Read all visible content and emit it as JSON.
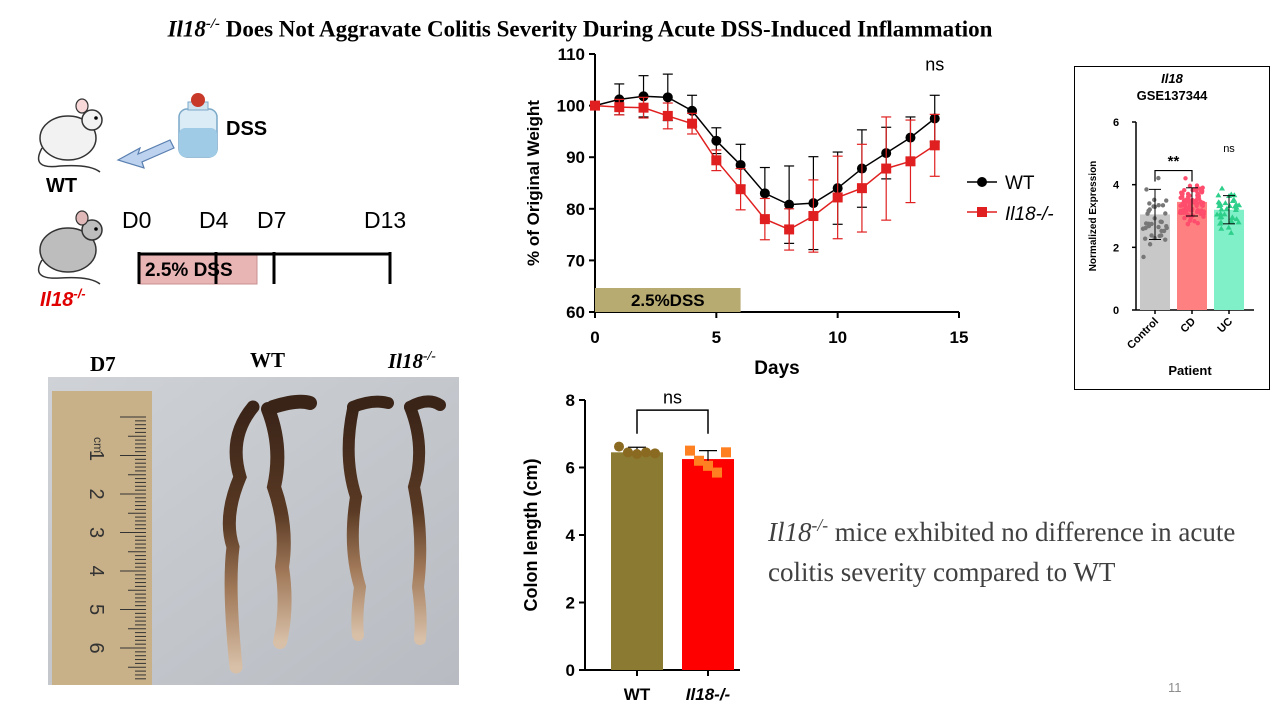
{
  "slide": {
    "title_gene": "Il18",
    "title_sup": "-/-",
    "title_rest": " Does Not Aggravate Colitis Severity During Acute DSS-Induced Inflammation",
    "slide_number": "11",
    "conclusion_gene": "Il18",
    "conclusion_sup": "-/-",
    "conclusion_text": " mice exhibited no difference in acute colitis severity compared to WT"
  },
  "schematic": {
    "dss_label": "DSS",
    "wt_label": "WT",
    "ko_gene": "Il18",
    "ko_sup": "-/-",
    "timeline_days": [
      "D0",
      "D4",
      "D7",
      "D13"
    ],
    "dss_bar_label": "2.5% DSS"
  },
  "photo": {
    "day_label": "D7",
    "wt_label": "WT",
    "ko_gene": "Il18",
    "ko_sup": "-/-",
    "ruler_ticks": [
      "1",
      "2",
      "3",
      "4",
      "5",
      "6"
    ],
    "ruler_unit": "cm"
  },
  "colors": {
    "wt": "#000000",
    "ko": "#e02020",
    "dss_bar": "#b8ab72",
    "wt_bar": "#8a7a32",
    "ko_bar": "#ff0000",
    "control": "#c8c8c8",
    "cd": "#ff8080",
    "uc": "#80f0c8"
  },
  "chart_data": [
    {
      "type": "line",
      "title": "",
      "xlabel": "Days",
      "ylabel": "% of Original Weight",
      "xlim": [
        0,
        15
      ],
      "ylim": [
        60,
        110
      ],
      "xticks": [
        0,
        5,
        10,
        15
      ],
      "yticks": [
        60,
        70,
        80,
        90,
        100,
        110
      ],
      "annotation": "ns",
      "dss_bar_label": "2.5%DSS",
      "dss_bar_range": [
        0,
        6
      ],
      "legend": "right",
      "x": [
        0,
        1,
        2,
        3,
        4,
        5,
        6,
        7,
        8,
        9,
        10,
        11,
        12,
        13,
        14
      ],
      "series": [
        {
          "name": "WT",
          "values": [
            100,
            101.2,
            101.8,
            101.6,
            99,
            93.2,
            88.5,
            83,
            80.8,
            81.1,
            84,
            87.8,
            90.8,
            93.8,
            97.5
          ],
          "errors": [
            0.5,
            3,
            4,
            4.5,
            3,
            2.5,
            4,
            5,
            7.5,
            9,
            7,
            7.5,
            5,
            4,
            4.5
          ]
        },
        {
          "name": "Il18-/-",
          "values": [
            100,
            99.7,
            99.6,
            98,
            96.5,
            89.4,
            83.8,
            78,
            76,
            78.6,
            82.2,
            84,
            87.8,
            89.2,
            92.3
          ],
          "errors": [
            0.5,
            1.5,
            2,
            2.5,
            2,
            2,
            4,
            4,
            4,
            7,
            8,
            8.5,
            10,
            8,
            6
          ]
        }
      ]
    },
    {
      "type": "bar",
      "title": "",
      "xlabel": "",
      "ylabel": "Colon length (cm)",
      "ylim": [
        0,
        8
      ],
      "yticks": [
        0,
        2,
        4,
        6,
        8
      ],
      "annotation": "ns",
      "categories": [
        "WT",
        "Il18-/-"
      ],
      "values": [
        6.45,
        6.25
      ],
      "errors": [
        0.15,
        0.25
      ],
      "points": [
        [
          6.62,
          6.45,
          6.4,
          6.45,
          6.42
        ],
        [
          6.5,
          6.2,
          6.05,
          5.85,
          6.45
        ]
      ]
    },
    {
      "type": "bar",
      "title": "Il18",
      "subtitle": "GSE137344",
      "xlabel": "Patient",
      "ylabel": "Normalized Expression",
      "ylim": [
        0,
        6
      ],
      "yticks": [
        0,
        2,
        4,
        6
      ],
      "categories": [
        "Control",
        "CD",
        "UC"
      ],
      "values": [
        3.05,
        3.45,
        3.2
      ],
      "errors": [
        0.8,
        0.45,
        0.45
      ],
      "annotations": [
        "**",
        "ns"
      ]
    }
  ]
}
